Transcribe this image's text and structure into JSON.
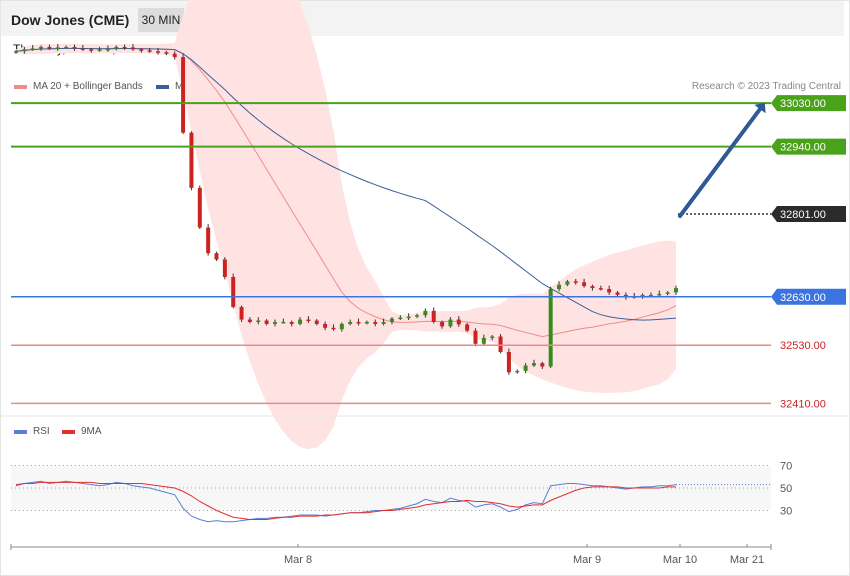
{
  "header": {
    "title": "Dow Jones (CME)",
    "interval": "30 MIN"
  },
  "datetime": "Thursday, March 9, 2023 7:55:54 AM CET",
  "legend_main": [
    {
      "label": "MA 20 + Bollinger Bands",
      "color": "#f08a8a"
    },
    {
      "label": "MA 50",
      "color": "#3a5f9a"
    }
  ],
  "credit": "Research © 2023 Trading Central",
  "legend_rsi": [
    {
      "label": "RSI",
      "color": "#5b7fd6"
    },
    {
      "label": "9MA",
      "color": "#e03030"
    }
  ],
  "colors": {
    "up": "#3a8a1e",
    "down": "#cc2222",
    "resistance": "#4aa21a",
    "support": "#3b73e0",
    "support2": "#e88a8a",
    "arrow": "#2f5a97"
  },
  "chart_data": [
    {
      "type": "candlestick",
      "y_range": [
        32390,
        33150
      ],
      "levels": [
        {
          "value": "33030.00",
          "kind": "resistance"
        },
        {
          "value": "32940.00",
          "kind": "resistance"
        },
        {
          "value": "32801.00",
          "kind": "last"
        },
        {
          "value": "32630.00",
          "kind": "support"
        },
        {
          "value": "32530.00",
          "kind": "support2"
        },
        {
          "value": "32410.00",
          "kind": "support2"
        }
      ],
      "close": [
        33137,
        33141,
        33143,
        33146,
        33143,
        33145,
        33146,
        33143,
        33141,
        33139,
        33141,
        33142,
        33146,
        33145,
        33141,
        33139,
        33137,
        33135,
        33132,
        33125,
        32969,
        32855,
        32773,
        32720,
        32707,
        32671,
        32609,
        32583,
        32578,
        32581,
        32574,
        32578,
        32578,
        32574,
        32583,
        32581,
        32574,
        32566,
        32563,
        32574,
        32578,
        32576,
        32578,
        32574,
        32578,
        32585,
        32587,
        32589,
        32592,
        32601,
        32578,
        32569,
        32583,
        32573,
        32560,
        32533,
        32545,
        32548,
        32516,
        32474,
        32477,
        32488,
        32493,
        32486,
        32646,
        32655,
        32662,
        32660,
        32652,
        32648,
        32646,
        32639,
        32634,
        32629,
        32631,
        32634,
        32634,
        32636,
        32639,
        32648
      ],
      "x_labels": [
        "Mar 8",
        "Mar 9",
        "Mar 10",
        "Mar 21"
      ],
      "forecast_arrow": {
        "from": 32801,
        "to": 33030
      }
    },
    {
      "type": "line",
      "name": "RSI",
      "y_range": [
        10,
        90
      ],
      "y_ticks": [
        "70",
        "50",
        "30"
      ],
      "series": [
        {
          "name": "RSI",
          "values": [
            52,
            54,
            55,
            56,
            54,
            55,
            56,
            55,
            54,
            53,
            52,
            53,
            55,
            54,
            52,
            51,
            50,
            48,
            46,
            44,
            32,
            25,
            22,
            20,
            21,
            20,
            20,
            21,
            22,
            23,
            23,
            24,
            24,
            25,
            26,
            26,
            26,
            25,
            26,
            27,
            28,
            28,
            29,
            30,
            30,
            31,
            32,
            34,
            36,
            40,
            38,
            37,
            41,
            39,
            38,
            33,
            35,
            36,
            33,
            29,
            31,
            35,
            37,
            36,
            52,
            53,
            54,
            54,
            53,
            52,
            52,
            51,
            50,
            49,
            50,
            51,
            51,
            52,
            52,
            53
          ]
        },
        {
          "name": "9MA",
          "values": [
            53,
            54,
            54,
            55,
            55,
            55,
            55,
            55,
            55,
            55,
            54,
            54,
            54,
            54,
            54,
            54,
            53,
            52,
            51,
            50,
            47,
            43,
            38,
            34,
            30,
            27,
            24,
            23,
            22,
            22,
            22,
            23,
            24,
            24,
            25,
            25,
            25,
            26,
            26,
            27,
            28,
            28,
            28,
            29,
            30,
            30,
            31,
            32,
            33,
            35,
            36,
            37,
            38,
            38,
            39,
            38,
            38,
            37,
            36,
            34,
            33,
            34,
            35,
            35,
            39,
            42,
            45,
            48,
            50,
            51,
            51,
            51,
            51,
            50,
            50,
            50,
            50,
            50,
            51,
            51
          ]
        }
      ]
    }
  ]
}
